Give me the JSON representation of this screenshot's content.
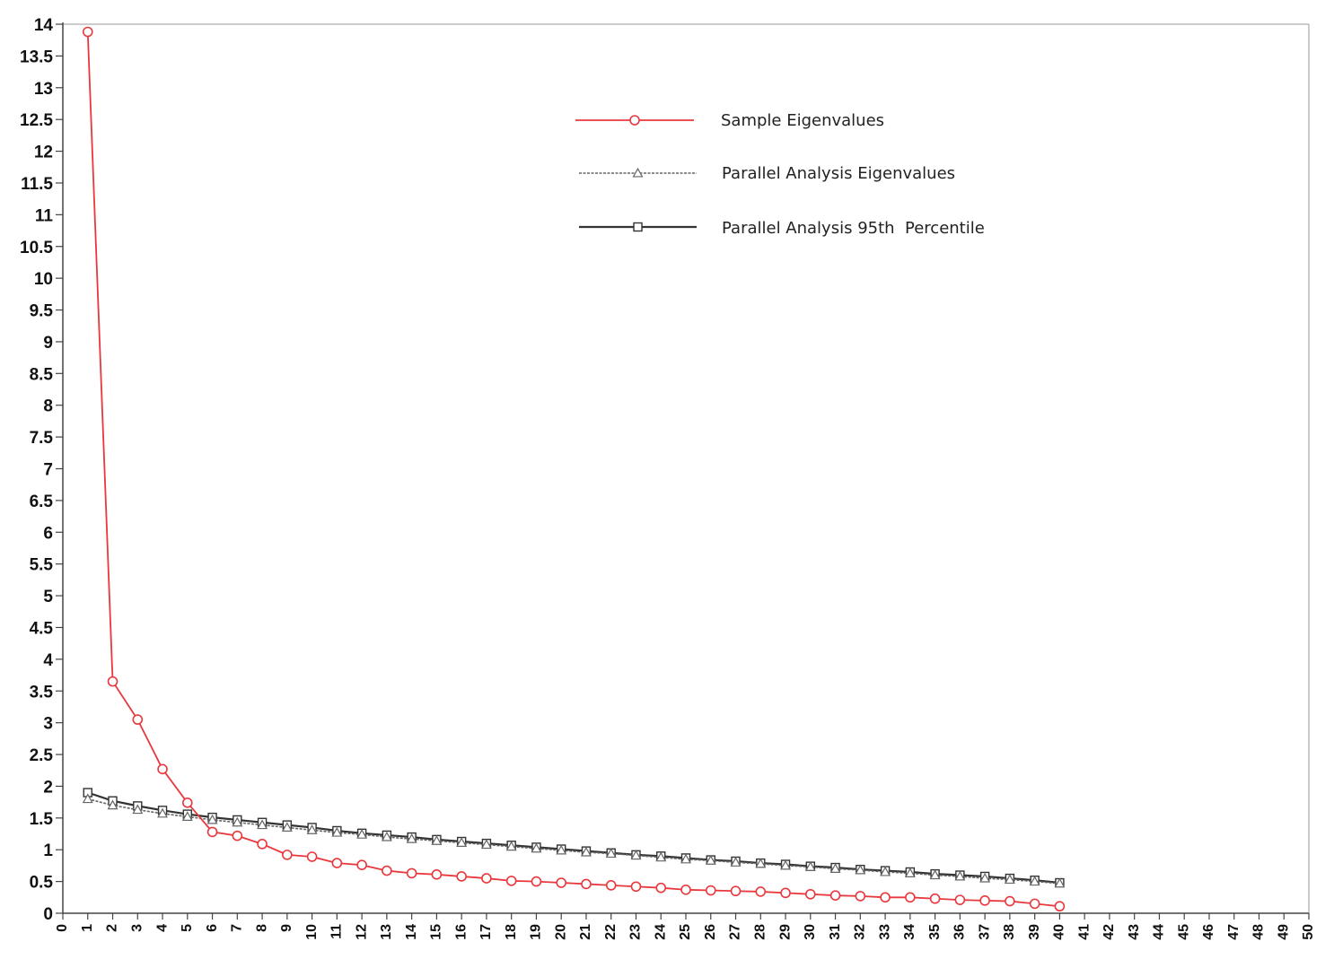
{
  "chart_data": {
    "type": "line",
    "title": "",
    "xlabel": "",
    "ylabel": "",
    "xlim": [
      0,
      50
    ],
    "ylim": [
      0,
      14
    ],
    "x_ticks": [
      0,
      1,
      2,
      3,
      4,
      5,
      6,
      7,
      8,
      9,
      10,
      11,
      12,
      13,
      14,
      15,
      16,
      17,
      18,
      19,
      20,
      21,
      22,
      23,
      24,
      25,
      26,
      27,
      28,
      29,
      30,
      31,
      32,
      33,
      34,
      35,
      36,
      37,
      38,
      39,
      40,
      41,
      42,
      43,
      44,
      45,
      46,
      47,
      48,
      49,
      50
    ],
    "y_ticks": [
      "0",
      "0.5",
      "1",
      "1.5",
      "2",
      "2.5",
      "3",
      "3.5",
      "4",
      "4.5",
      "5",
      "5.5",
      "6",
      "6.5",
      "7",
      "7.5",
      "8",
      "8.5",
      "9",
      "9.5",
      "10",
      "10.5",
      "11",
      "11.5",
      "12",
      "12.5",
      "13",
      "13.5",
      "14"
    ],
    "grid": false,
    "legend_position": "top-center",
    "x": [
      1,
      2,
      3,
      4,
      5,
      6,
      7,
      8,
      9,
      10,
      11,
      12,
      13,
      14,
      15,
      16,
      17,
      18,
      19,
      20,
      21,
      22,
      23,
      24,
      25,
      26,
      27,
      28,
      29,
      30,
      31,
      32,
      33,
      34,
      35,
      36,
      37,
      38,
      39,
      40
    ],
    "series": [
      {
        "name": "Sample Eigenvalues",
        "color": "#e8383d",
        "marker": "circle",
        "values": [
          13.88,
          3.65,
          3.05,
          2.27,
          1.74,
          1.28,
          1.22,
          1.09,
          0.92,
          0.89,
          0.79,
          0.76,
          0.67,
          0.63,
          0.61,
          0.58,
          0.55,
          0.51,
          0.5,
          0.48,
          0.46,
          0.44,
          0.42,
          0.4,
          0.37,
          0.36,
          0.35,
          0.34,
          0.32,
          0.3,
          0.28,
          0.27,
          0.25,
          0.25,
          0.23,
          0.21,
          0.2,
          0.19,
          0.15,
          0.11
        ]
      },
      {
        "name": "Parallel Analysis Eigenvalues",
        "color": "#666666",
        "marker": "triangle",
        "values": [
          1.8,
          1.7,
          1.63,
          1.57,
          1.52,
          1.47,
          1.43,
          1.39,
          1.35,
          1.31,
          1.27,
          1.24,
          1.2,
          1.17,
          1.14,
          1.11,
          1.08,
          1.05,
          1.02,
          0.99,
          0.96,
          0.94,
          0.91,
          0.88,
          0.85,
          0.83,
          0.8,
          0.78,
          0.75,
          0.73,
          0.7,
          0.68,
          0.65,
          0.63,
          0.6,
          0.58,
          0.55,
          0.53,
          0.5,
          0.47
        ]
      },
      {
        "name": "Parallel Analysis 95th  Percentile",
        "color": "#333333",
        "marker": "square",
        "values": [
          1.9,
          1.77,
          1.69,
          1.62,
          1.56,
          1.51,
          1.47,
          1.43,
          1.39,
          1.35,
          1.3,
          1.26,
          1.23,
          1.2,
          1.16,
          1.13,
          1.1,
          1.07,
          1.04,
          1.01,
          0.98,
          0.95,
          0.92,
          0.9,
          0.87,
          0.84,
          0.82,
          0.79,
          0.77,
          0.74,
          0.72,
          0.69,
          0.67,
          0.65,
          0.62,
          0.6,
          0.58,
          0.55,
          0.52,
          0.48
        ]
      }
    ]
  }
}
